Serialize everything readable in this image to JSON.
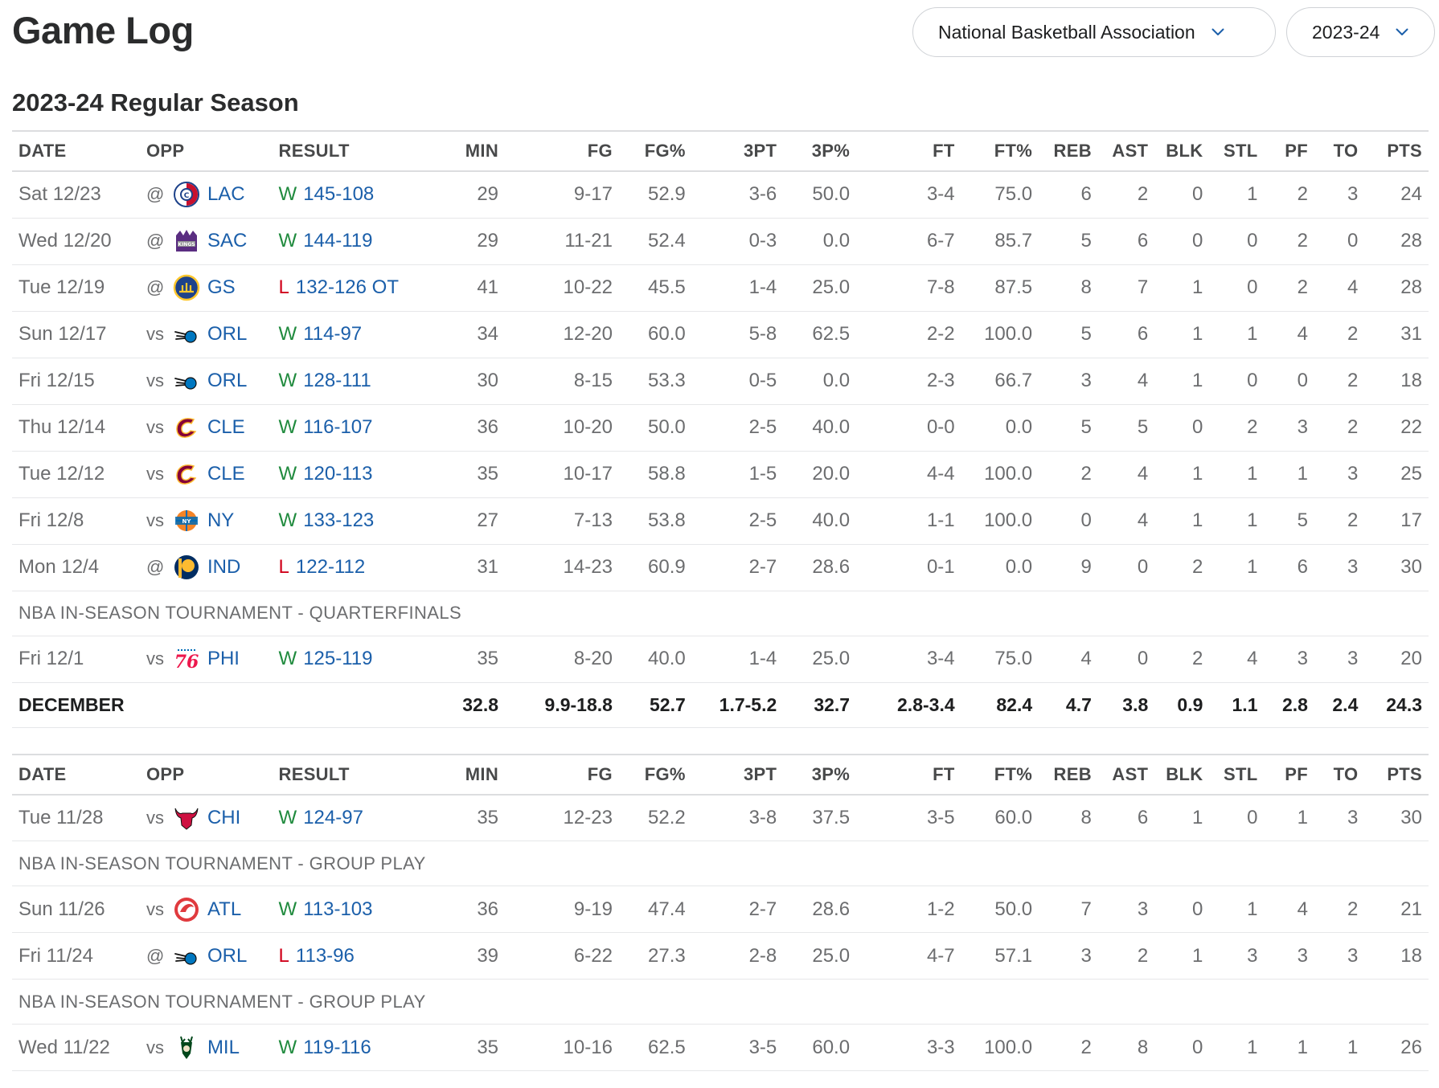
{
  "page": {
    "title": "Game Log",
    "league_dropdown": "National Basketball Association",
    "season_dropdown": "2023-24",
    "section_title": "2023-24 Regular Season"
  },
  "columns": [
    "DATE",
    "OPP",
    "RESULT",
    "MIN",
    "FG",
    "FG%",
    "3PT",
    "3P%",
    "FT",
    "FT%",
    "REB",
    "AST",
    "BLK",
    "STL",
    "PF",
    "TO",
    "PTS"
  ],
  "colors": {
    "win": "#1f8a3d",
    "loss": "#d0021b",
    "link": "#1b5faa",
    "text": "#6c6d6f"
  },
  "tables": [
    {
      "rows": [
        {
          "type": "game",
          "date": "Sat 12/23",
          "ha": "@",
          "team": "LAC",
          "logo": "clippers-logo",
          "wl": "W",
          "score": "145-108",
          "min": "29",
          "fg": "9-17",
          "fgp": "52.9",
          "tpt": "3-6",
          "tpp": "50.0",
          "ft": "3-4",
          "ftp": "75.0",
          "reb": "6",
          "ast": "2",
          "blk": "0",
          "stl": "1",
          "pf": "2",
          "to": "3",
          "pts": "24"
        },
        {
          "type": "game",
          "date": "Wed 12/20",
          "ha": "@",
          "team": "SAC",
          "logo": "kings-logo",
          "wl": "W",
          "score": "144-119",
          "min": "29",
          "fg": "11-21",
          "fgp": "52.4",
          "tpt": "0-3",
          "tpp": "0.0",
          "ft": "6-7",
          "ftp": "85.7",
          "reb": "5",
          "ast": "6",
          "blk": "0",
          "stl": "0",
          "pf": "2",
          "to": "0",
          "pts": "28"
        },
        {
          "type": "game",
          "date": "Tue 12/19",
          "ha": "@",
          "team": "GS",
          "logo": "warriors-logo",
          "wl": "L",
          "score": "132-126 OT",
          "min": "41",
          "fg": "10-22",
          "fgp": "45.5",
          "tpt": "1-4",
          "tpp": "25.0",
          "ft": "7-8",
          "ftp": "87.5",
          "reb": "8",
          "ast": "7",
          "blk": "1",
          "stl": "0",
          "pf": "2",
          "to": "4",
          "pts": "28"
        },
        {
          "type": "game",
          "date": "Sun 12/17",
          "ha": "vs",
          "team": "ORL",
          "logo": "magic-logo",
          "wl": "W",
          "score": "114-97",
          "min": "34",
          "fg": "12-20",
          "fgp": "60.0",
          "tpt": "5-8",
          "tpp": "62.5",
          "ft": "2-2",
          "ftp": "100.0",
          "reb": "5",
          "ast": "6",
          "blk": "1",
          "stl": "1",
          "pf": "4",
          "to": "2",
          "pts": "31"
        },
        {
          "type": "game",
          "date": "Fri 12/15",
          "ha": "vs",
          "team": "ORL",
          "logo": "magic-logo",
          "wl": "W",
          "score": "128-111",
          "min": "30",
          "fg": "8-15",
          "fgp": "53.3",
          "tpt": "0-5",
          "tpp": "0.0",
          "ft": "2-3",
          "ftp": "66.7",
          "reb": "3",
          "ast": "4",
          "blk": "1",
          "stl": "0",
          "pf": "0",
          "to": "2",
          "pts": "18"
        },
        {
          "type": "game",
          "date": "Thu 12/14",
          "ha": "vs",
          "team": "CLE",
          "logo": "cavaliers-logo",
          "wl": "W",
          "score": "116-107",
          "min": "36",
          "fg": "10-20",
          "fgp": "50.0",
          "tpt": "2-5",
          "tpp": "40.0",
          "ft": "0-0",
          "ftp": "0.0",
          "reb": "5",
          "ast": "5",
          "blk": "0",
          "stl": "2",
          "pf": "3",
          "to": "2",
          "pts": "22"
        },
        {
          "type": "game",
          "date": "Tue 12/12",
          "ha": "vs",
          "team": "CLE",
          "logo": "cavaliers-logo",
          "wl": "W",
          "score": "120-113",
          "min": "35",
          "fg": "10-17",
          "fgp": "58.8",
          "tpt": "1-5",
          "tpp": "20.0",
          "ft": "4-4",
          "ftp": "100.0",
          "reb": "2",
          "ast": "4",
          "blk": "1",
          "stl": "1",
          "pf": "1",
          "to": "3",
          "pts": "25"
        },
        {
          "type": "game",
          "date": "Fri 12/8",
          "ha": "vs",
          "team": "NY",
          "logo": "knicks-logo",
          "wl": "W",
          "score": "133-123",
          "min": "27",
          "fg": "7-13",
          "fgp": "53.8",
          "tpt": "2-5",
          "tpp": "40.0",
          "ft": "1-1",
          "ftp": "100.0",
          "reb": "0",
          "ast": "4",
          "blk": "1",
          "stl": "1",
          "pf": "5",
          "to": "2",
          "pts": "17"
        },
        {
          "type": "game",
          "date": "Mon 12/4",
          "ha": "@",
          "team": "IND",
          "logo": "pacers-logo",
          "wl": "L",
          "score": "122-112",
          "min": "31",
          "fg": "14-23",
          "fgp": "60.9",
          "tpt": "2-7",
          "tpp": "28.6",
          "ft": "0-1",
          "ftp": "0.0",
          "reb": "9",
          "ast": "0",
          "blk": "2",
          "stl": "1",
          "pf": "6",
          "to": "3",
          "pts": "30"
        },
        {
          "type": "label",
          "text": "NBA IN-SEASON TOURNAMENT - QUARTERFINALS"
        },
        {
          "type": "game",
          "date": "Fri 12/1",
          "ha": "vs",
          "team": "PHI",
          "logo": "76ers-logo",
          "wl": "W",
          "score": "125-119",
          "min": "35",
          "fg": "8-20",
          "fgp": "40.0",
          "tpt": "1-4",
          "tpp": "25.0",
          "ft": "3-4",
          "ftp": "75.0",
          "reb": "4",
          "ast": "0",
          "blk": "2",
          "stl": "4",
          "pf": "3",
          "to": "3",
          "pts": "20"
        },
        {
          "type": "total",
          "label": "DECEMBER",
          "min": "32.8",
          "fg": "9.9-18.8",
          "fgp": "52.7",
          "tpt": "1.7-5.2",
          "tpp": "32.7",
          "ft": "2.8-3.4",
          "ftp": "82.4",
          "reb": "4.7",
          "ast": "3.8",
          "blk": "0.9",
          "stl": "1.1",
          "pf": "2.8",
          "to": "2.4",
          "pts": "24.3"
        }
      ]
    },
    {
      "rows": [
        {
          "type": "game",
          "date": "Tue 11/28",
          "ha": "vs",
          "team": "CHI",
          "logo": "bulls-logo",
          "wl": "W",
          "score": "124-97",
          "min": "35",
          "fg": "12-23",
          "fgp": "52.2",
          "tpt": "3-8",
          "tpp": "37.5",
          "ft": "3-5",
          "ftp": "60.0",
          "reb": "8",
          "ast": "6",
          "blk": "1",
          "stl": "0",
          "pf": "1",
          "to": "3",
          "pts": "30"
        },
        {
          "type": "label",
          "text": "NBA IN-SEASON TOURNAMENT - GROUP PLAY"
        },
        {
          "type": "game",
          "date": "Sun 11/26",
          "ha": "vs",
          "team": "ATL",
          "logo": "hawks-logo",
          "wl": "W",
          "score": "113-103",
          "min": "36",
          "fg": "9-19",
          "fgp": "47.4",
          "tpt": "2-7",
          "tpp": "28.6",
          "ft": "1-2",
          "ftp": "50.0",
          "reb": "7",
          "ast": "3",
          "blk": "0",
          "stl": "1",
          "pf": "4",
          "to": "2",
          "pts": "21"
        },
        {
          "type": "game",
          "date": "Fri 11/24",
          "ha": "@",
          "team": "ORL",
          "logo": "magic-logo",
          "wl": "L",
          "score": "113-96",
          "min": "39",
          "fg": "6-22",
          "fgp": "27.3",
          "tpt": "2-8",
          "tpp": "25.0",
          "ft": "4-7",
          "ftp": "57.1",
          "reb": "3",
          "ast": "2",
          "blk": "1",
          "stl": "3",
          "pf": "3",
          "to": "3",
          "pts": "18"
        },
        {
          "type": "label",
          "text": "NBA IN-SEASON TOURNAMENT - GROUP PLAY"
        },
        {
          "type": "game",
          "date": "Wed 11/22",
          "ha": "vs",
          "team": "MIL",
          "logo": "bucks-logo",
          "wl": "W",
          "score": "119-116",
          "min": "35",
          "fg": "10-16",
          "fgp": "62.5",
          "tpt": "3-5",
          "tpp": "60.0",
          "ft": "3-3",
          "ftp": "100.0",
          "reb": "2",
          "ast": "8",
          "blk": "0",
          "stl": "1",
          "pf": "1",
          "to": "1",
          "pts": "26"
        }
      ]
    }
  ]
}
